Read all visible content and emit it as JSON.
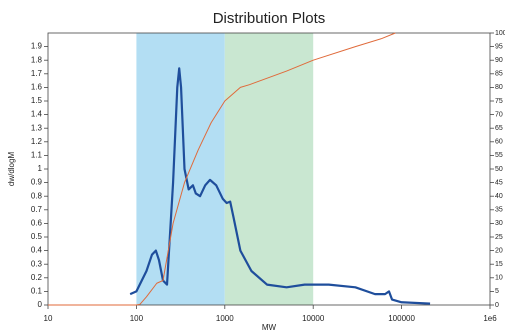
{
  "chart_data": {
    "type": "line",
    "title": "Distribution Plots",
    "x_label": "MW",
    "y_label": "dw/dlogM",
    "x_log": true,
    "xlim": [
      10,
      1000000
    ],
    "xticks": [
      10,
      100,
      1000,
      10000,
      100000,
      {
        "value": 1000000,
        "label": "1e6"
      }
    ],
    "ylim": [
      0,
      2
    ],
    "yticks": [
      0,
      0.1,
      0.2,
      0.3,
      0.4,
      0.5,
      0.6,
      0.7,
      0.8,
      0.9,
      1,
      1.1,
      1.2,
      1.3,
      1.4,
      1.5,
      1.6,
      1.7,
      1.8,
      1.9
    ],
    "y2lim": [
      0,
      100
    ],
    "y2ticks": [
      0,
      5,
      10,
      15,
      20,
      25,
      30,
      35,
      40,
      45,
      50,
      55,
      60,
      65,
      70,
      75,
      80,
      85,
      90,
      95,
      100
    ],
    "regions": [
      {
        "from": 100,
        "to": 1000,
        "color": "#b3def3"
      },
      {
        "from": 1000,
        "to": 10000,
        "color": "#c9e7d1"
      }
    ],
    "series": [
      {
        "color": "#1f4e9c",
        "x": [
          85,
          100,
          130,
          150,
          166,
          180,
          200,
          222,
          260,
          290,
          305,
          320,
          350,
          390,
          436,
          470,
          525,
          600,
          680,
          800,
          950,
          1050,
          1150,
          1250,
          1500,
          2000,
          3000,
          5000,
          8000,
          15000,
          30000,
          50000,
          65000,
          72000,
          78000,
          100000,
          210000
        ],
        "values": [
          0.08,
          0.1,
          0.25,
          0.37,
          0.4,
          0.33,
          0.18,
          0.15,
          0.9,
          1.6,
          1.74,
          1.6,
          1.0,
          0.85,
          0.88,
          0.82,
          0.8,
          0.88,
          0.92,
          0.88,
          0.78,
          0.75,
          0.76,
          0.65,
          0.4,
          0.25,
          0.15,
          0.13,
          0.15,
          0.15,
          0.13,
          0.08,
          0.08,
          0.1,
          0.04,
          0.02,
          0.01
        ]
      },
      {
        "color": "#e06a3a",
        "axis": "y2",
        "x": [
          10,
          100,
          110,
          130,
          170,
          200,
          260,
          350,
          500,
          700,
          1000,
          1500,
          1900,
          5000,
          10000,
          30000,
          60000,
          85000
        ],
        "values": [
          0,
          0,
          0.3,
          3,
          8,
          9,
          30,
          45,
          57,
          67,
          75,
          80,
          81,
          86,
          90,
          95,
          98,
          100
        ]
      }
    ]
  }
}
